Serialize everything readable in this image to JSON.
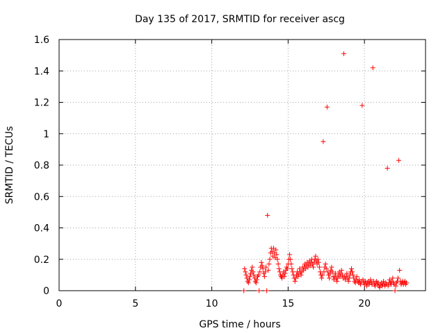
{
  "chart_data": {
    "type": "scatter",
    "title": "Day 135 of 2017, SRMTID for receiver ascg",
    "xlabel": "GPS time / hours",
    "ylabel": "SRMTID / TECUs",
    "xlim": [
      0,
      24
    ],
    "ylim": [
      0,
      1.6
    ],
    "xticks": [
      0,
      5,
      10,
      15,
      20
    ],
    "xtick_labels": [
      "0",
      "5",
      "10",
      "15",
      "20"
    ],
    "yticks": [
      0,
      0.2,
      0.4,
      0.6,
      0.8,
      1,
      1.2,
      1.4,
      1.6
    ],
    "ytick_labels": [
      "0",
      "0.2",
      "0.4",
      "0.6",
      "0.8",
      "1",
      "1.2",
      "1.4",
      "1.6"
    ],
    "grid": true,
    "series": [
      {
        "name": "SRMTID",
        "color": "#ff0000",
        "marker": "plus",
        "points": [
          [
            12.1,
            0.0
          ],
          [
            12.15,
            0.14
          ],
          [
            12.2,
            0.12
          ],
          [
            12.25,
            0.1
          ],
          [
            12.3,
            0.08
          ],
          [
            12.35,
            0.06
          ],
          [
            12.4,
            0.05
          ],
          [
            12.45,
            0.07
          ],
          [
            12.5,
            0.09
          ],
          [
            12.55,
            0.11
          ],
          [
            12.6,
            0.13
          ],
          [
            12.65,
            0.15
          ],
          [
            12.7,
            0.12
          ],
          [
            12.75,
            0.1
          ],
          [
            12.8,
            0.08
          ],
          [
            12.85,
            0.06
          ],
          [
            12.9,
            0.05
          ],
          [
            12.95,
            0.07
          ],
          [
            13.0,
            0.09
          ],
          [
            13.05,
            0.1
          ],
          [
            13.1,
            0.0
          ],
          [
            13.15,
            0.12
          ],
          [
            13.2,
            0.15
          ],
          [
            13.25,
            0.18
          ],
          [
            13.3,
            0.16
          ],
          [
            13.35,
            0.14
          ],
          [
            13.4,
            0.11
          ],
          [
            13.45,
            0.09
          ],
          [
            13.5,
            0.12
          ],
          [
            13.55,
            0.15
          ],
          [
            13.6,
            0.0
          ],
          [
            13.65,
            0.48
          ],
          [
            13.7,
            0.13
          ],
          [
            13.75,
            0.17
          ],
          [
            13.8,
            0.2
          ],
          [
            13.85,
            0.24
          ],
          [
            13.9,
            0.27
          ],
          [
            13.95,
            0.25
          ],
          [
            14.0,
            0.22
          ],
          [
            14.05,
            0.27
          ],
          [
            14.1,
            0.24
          ],
          [
            14.15,
            0.21
          ],
          [
            14.2,
            0.26
          ],
          [
            14.25,
            0.23
          ],
          [
            14.3,
            0.2
          ],
          [
            14.35,
            0.17
          ],
          [
            14.4,
            0.14
          ],
          [
            14.45,
            0.12
          ],
          [
            14.5,
            0.1
          ],
          [
            14.55,
            0.09
          ],
          [
            14.6,
            0.08
          ],
          [
            14.65,
            0.1
          ],
          [
            14.7,
            0.12
          ],
          [
            14.75,
            0.09
          ],
          [
            14.8,
            0.11
          ],
          [
            14.85,
            0.13
          ],
          [
            14.9,
            0.15
          ],
          [
            14.95,
            0.14
          ],
          [
            15.0,
            0.17
          ],
          [
            15.05,
            0.2
          ],
          [
            15.1,
            0.23
          ],
          [
            15.15,
            0.2
          ],
          [
            15.2,
            0.17
          ],
          [
            15.25,
            0.14
          ],
          [
            15.3,
            0.12
          ],
          [
            15.35,
            0.1
          ],
          [
            15.4,
            0.08
          ],
          [
            15.45,
            0.06
          ],
          [
            15.5,
            0.08
          ],
          [
            15.55,
            0.1
          ],
          [
            15.6,
            0.12
          ],
          [
            15.65,
            0.09
          ],
          [
            15.7,
            0.11
          ],
          [
            15.75,
            0.14
          ],
          [
            15.8,
            0.12
          ],
          [
            15.85,
            0.1
          ],
          [
            15.9,
            0.12
          ],
          [
            15.95,
            0.15
          ],
          [
            16.0,
            0.13
          ],
          [
            16.05,
            0.15
          ],
          [
            16.1,
            0.17
          ],
          [
            16.15,
            0.14
          ],
          [
            16.2,
            0.16
          ],
          [
            16.25,
            0.18
          ],
          [
            16.3,
            0.15
          ],
          [
            16.35,
            0.17
          ],
          [
            16.4,
            0.19
          ],
          [
            16.45,
            0.16
          ],
          [
            16.5,
            0.18
          ],
          [
            16.55,
            0.2
          ],
          [
            16.6,
            0.17
          ],
          [
            16.65,
            0.15
          ],
          [
            16.7,
            0.18
          ],
          [
            16.75,
            0.2
          ],
          [
            16.8,
            0.22
          ],
          [
            16.85,
            0.19
          ],
          [
            16.9,
            0.17
          ],
          [
            16.95,
            0.2
          ],
          [
            17.0,
            0.18
          ],
          [
            17.05,
            0.15
          ],
          [
            17.1,
            0.12
          ],
          [
            17.15,
            0.1
          ],
          [
            17.2,
            0.08
          ],
          [
            17.25,
            0.1
          ],
          [
            17.3,
            0.95
          ],
          [
            17.35,
            0.12
          ],
          [
            17.4,
            0.15
          ],
          [
            17.45,
            0.17
          ],
          [
            17.5,
            0.14
          ],
          [
            17.55,
            1.17
          ],
          [
            17.6,
            0.12
          ],
          [
            17.65,
            0.1
          ],
          [
            17.7,
            0.08
          ],
          [
            17.75,
            0.11
          ],
          [
            17.8,
            0.13
          ],
          [
            17.85,
            0.15
          ],
          [
            17.9,
            0.12
          ],
          [
            17.95,
            0.09
          ],
          [
            18.0,
            0.07
          ],
          [
            18.05,
            0.09
          ],
          [
            18.1,
            0.11
          ],
          [
            18.15,
            0.08
          ],
          [
            18.2,
            0.06
          ],
          [
            18.25,
            0.08
          ],
          [
            18.3,
            0.1
          ],
          [
            18.35,
            0.12
          ],
          [
            18.4,
            0.09
          ],
          [
            18.45,
            0.11
          ],
          [
            18.5,
            0.13
          ],
          [
            18.55,
            0.1
          ],
          [
            18.6,
            0.08
          ],
          [
            18.65,
            1.51
          ],
          [
            18.7,
            0.09
          ],
          [
            18.75,
            0.07
          ],
          [
            18.8,
            0.09
          ],
          [
            18.85,
            0.11
          ],
          [
            18.9,
            0.08
          ],
          [
            18.95,
            0.06
          ],
          [
            19.0,
            0.08
          ],
          [
            19.05,
            0.1
          ],
          [
            19.1,
            0.12
          ],
          [
            19.15,
            0.14
          ],
          [
            19.2,
            0.12
          ],
          [
            19.25,
            0.1
          ],
          [
            19.3,
            0.08
          ],
          [
            19.35,
            0.06
          ],
          [
            19.4,
            0.05
          ],
          [
            19.45,
            0.07
          ],
          [
            19.5,
            0.09
          ],
          [
            19.55,
            0.06
          ],
          [
            19.6,
            0.05
          ],
          [
            19.65,
            0.07
          ],
          [
            19.7,
            0.05
          ],
          [
            19.75,
            0.04
          ],
          [
            19.8,
            0.06
          ],
          [
            19.85,
            1.18
          ],
          [
            19.9,
            0.07
          ],
          [
            19.95,
            0.05
          ],
          [
            20.0,
            0.04
          ],
          [
            20.05,
            0.06
          ],
          [
            20.1,
            0.05
          ],
          [
            20.15,
            0.03
          ],
          [
            20.2,
            0.05
          ],
          [
            20.25,
            0.06
          ],
          [
            20.3,
            0.04
          ],
          [
            20.35,
            0.05
          ],
          [
            20.4,
            0.07
          ],
          [
            20.45,
            0.05
          ],
          [
            20.5,
            0.04
          ],
          [
            20.55,
            1.42
          ],
          [
            20.6,
            0.06
          ],
          [
            20.65,
            0.04
          ],
          [
            20.7,
            0.03
          ],
          [
            20.75,
            0.05
          ],
          [
            20.8,
            0.06
          ],
          [
            20.85,
            0.04
          ],
          [
            20.9,
            0.05
          ],
          [
            20.95,
            0.03
          ],
          [
            21.0,
            0.02
          ],
          [
            21.05,
            0.04
          ],
          [
            21.1,
            0.05
          ],
          [
            21.15,
            0.03
          ],
          [
            21.2,
            0.04
          ],
          [
            21.25,
            0.06
          ],
          [
            21.3,
            0.04
          ],
          [
            21.35,
            0.03
          ],
          [
            21.4,
            0.05
          ],
          [
            21.45,
            0.04
          ],
          [
            21.5,
            0.78
          ],
          [
            21.55,
            0.03
          ],
          [
            21.6,
            0.05
          ],
          [
            21.65,
            0.07
          ],
          [
            21.7,
            0.05
          ],
          [
            21.75,
            0.04
          ],
          [
            21.8,
            0.06
          ],
          [
            21.85,
            0.08
          ],
          [
            21.9,
            0.05
          ],
          [
            21.95,
            0.04
          ],
          [
            22.0,
            0.0
          ],
          [
            22.05,
            0.03
          ],
          [
            22.1,
            0.05
          ],
          [
            22.15,
            0.06
          ],
          [
            22.2,
            0.08
          ],
          [
            22.25,
            0.83
          ],
          [
            22.3,
            0.13
          ],
          [
            22.35,
            0.06
          ],
          [
            22.4,
            0.04
          ],
          [
            22.45,
            0.05
          ],
          [
            22.5,
            0.06
          ],
          [
            22.55,
            0.04
          ],
          [
            22.6,
            0.05
          ],
          [
            22.65,
            0.06
          ],
          [
            22.7,
            0.04
          ],
          [
            22.75,
            0.05
          ]
        ]
      }
    ]
  }
}
